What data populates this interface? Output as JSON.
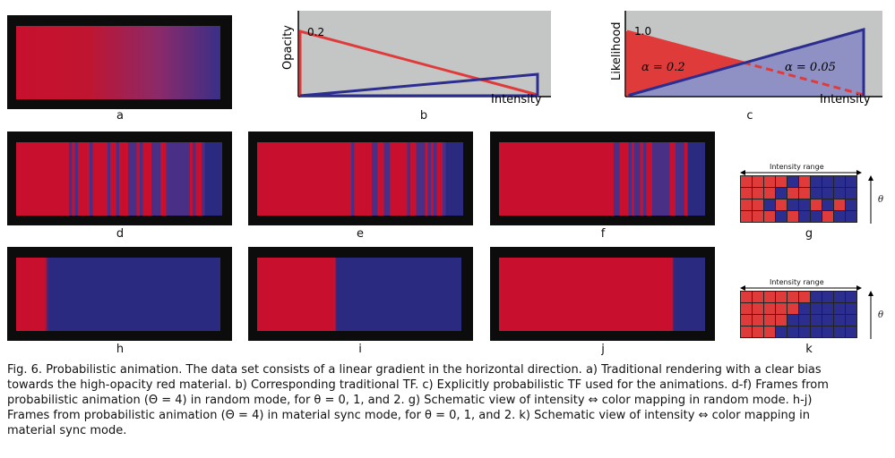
{
  "figure": {
    "subfigure_labels": [
      "a",
      "b",
      "c",
      "d",
      "e",
      "f",
      "g",
      "h",
      "i",
      "j",
      "k"
    ],
    "plot_b": {
      "ylabel": "Opacity",
      "xlabel": "Intensity",
      "tick_value": "0.2"
    },
    "plot_c": {
      "ylabel": "Likelihood",
      "xlabel": "Intensity",
      "tick_value": "1.0",
      "alpha_left": "α = 0.2",
      "alpha_right": "α = 0.05"
    },
    "schematic_g": {
      "range_label": "Intensity range",
      "theta": "θ",
      "cells": [
        "RRRRBRBBBB",
        "RRRBRRBBBB",
        "RRBRBBRBRB",
        "RRRBRBBRBB"
      ]
    },
    "schematic_k": {
      "range_label": "Intensity range",
      "theta": "θ",
      "cells": [
        "RRRRRRBBBB",
        "RRRRRBBBBB",
        "RRRRBBBBBB",
        "RRRBBBBBBB"
      ]
    },
    "colors": {
      "red": "#e03b3b",
      "blue": "#2b2d8f",
      "render_red": "#c8102e",
      "render_blue": "#2a2a80",
      "plot_bg": "#c4c6c5"
    },
    "caption": {
      "lines": [
        "Fig. 6.  Probabilistic animation.  The data set consists of a linear gradient in the horizontal direction.  a) Traditional rendering with a clear bias",
        "towards the high-opacity red material.  b) Corresponding traditional TF. c) Explicitly probabilistic TF used for the animations. d-f) Frames from",
        "probabilistic animation (Θ = 4) in random mode, for θ = 0, 1, and 2.  g) Schematic view of intensity ⇔ color mapping in random mode.  h-j)",
        "Frames from probabilistic animation (Θ = 4) in material sync mode, for θ = 0, 1, and 2.  k) Schematic view of intensity ⇔ color mapping in",
        "material sync mode."
      ]
    }
  }
}
